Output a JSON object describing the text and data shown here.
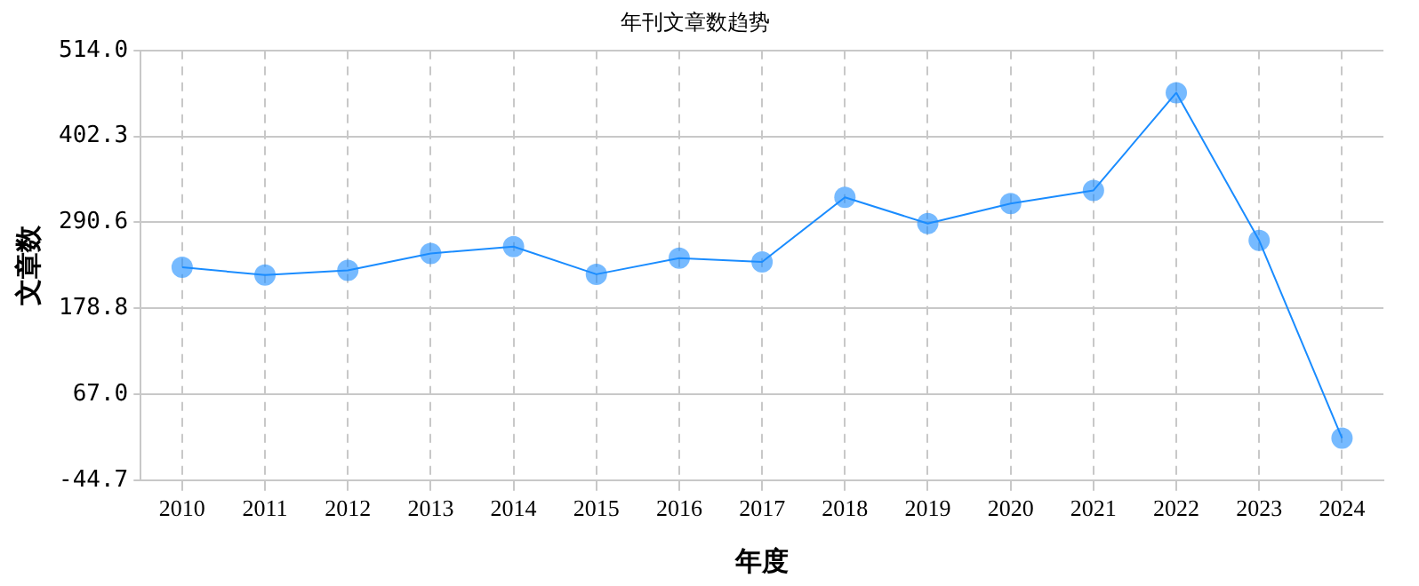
{
  "chart_data": {
    "type": "line",
    "title": "年刊文章数趋势",
    "xlabel": "年度",
    "ylabel": "文章数",
    "categories": [
      "2010",
      "2011",
      "2012",
      "2013",
      "2014",
      "2015",
      "2016",
      "2017",
      "2018",
      "2019",
      "2020",
      "2021",
      "2022",
      "2023",
      "2024"
    ],
    "series": [
      {
        "color": "#1a8cff",
        "values": [
          232,
          222,
          228,
          250,
          259,
          223,
          244,
          239,
          323,
          289,
          315,
          332,
          459,
          267,
          10
        ]
      }
    ],
    "ylim": [
      -44.7,
      514.0
    ],
    "yticks": [
      {
        "value": -44.7,
        "label": "-44.7"
      },
      {
        "value": 67.0,
        "label": "67.0"
      },
      {
        "value": 178.8,
        "label": "178.8"
      },
      {
        "value": 290.6,
        "label": "290.6"
      },
      {
        "value": 402.3,
        "label": "402.3"
      },
      {
        "value": 514.0,
        "label": "514.0"
      }
    ],
    "grid": true,
    "marker": "circle",
    "line_style": "solid",
    "legend": false
  }
}
